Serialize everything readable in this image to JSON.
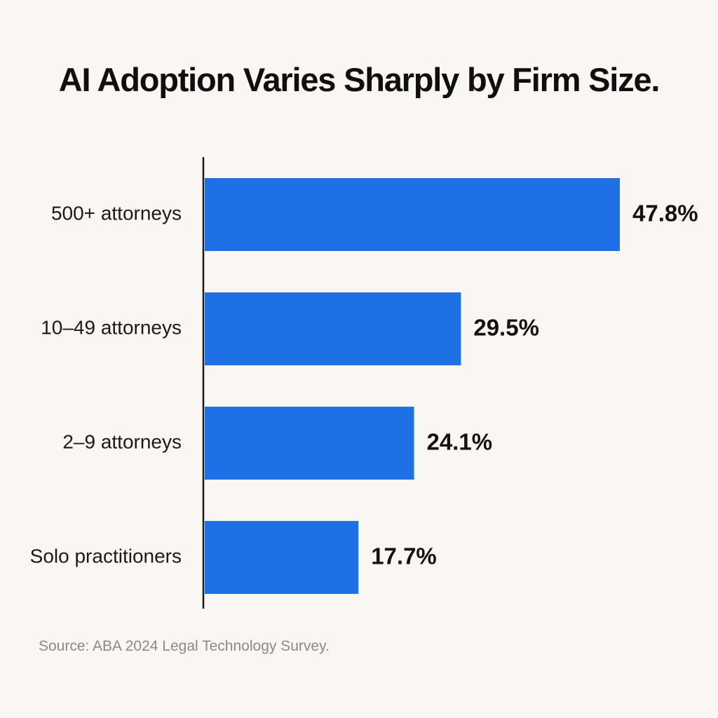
{
  "chart_data": {
    "type": "bar",
    "orientation": "horizontal",
    "title": "AI Adoption Varies Sharply by Firm Size.",
    "categories": [
      "500+ attorneys",
      "10–49 attorneys",
      "2–9 attorneys",
      "Solo practitioners"
    ],
    "values": [
      47.8,
      29.5,
      24.1,
      17.7
    ],
    "value_labels": [
      "47.8%",
      "29.5%",
      "24.1%",
      "17.7%"
    ],
    "xlim": [
      0,
      47.8
    ],
    "xlabel": "",
    "ylabel": "",
    "grid": false,
    "legend": "none",
    "bar_color": "#1f6fe5",
    "source": "Source: ABA 2024 Legal Technology Survey."
  }
}
